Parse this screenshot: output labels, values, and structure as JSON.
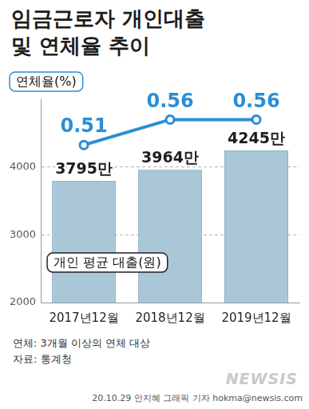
{
  "chart_data": {
    "type": "bar",
    "title": "임금근로자 개인대출 및 연체율 추이",
    "categories": [
      "2017년12월",
      "2018년12월",
      "2019년12월"
    ],
    "series": [
      {
        "name": "개인 평균 대출(원)",
        "type": "bar",
        "color": "#a9c7d6",
        "values": [
          3795,
          3964,
          4245
        ],
        "value_labels": [
          "3795만",
          "3964만",
          "4245만"
        ]
      },
      {
        "name": "연체율(%)",
        "type": "line",
        "color": "#2a8ed6",
        "axis": "y2",
        "marker": "circle",
        "values": [
          0.51,
          0.56,
          0.56
        ]
      }
    ],
    "ylim": [
      2000,
      5000
    ],
    "yticks": [
      2000,
      3000,
      4000
    ],
    "y2lim": [
      0.2,
      0.6
    ],
    "grid": true,
    "data_labels": true,
    "annotations": [
      "연체: 3개월 이상의 연체 대상",
      "자료: 통계청",
      "20.10.29 안지혜 그래픽 기자 hokma@newsis.com",
      "NEWSIS"
    ]
  }
}
